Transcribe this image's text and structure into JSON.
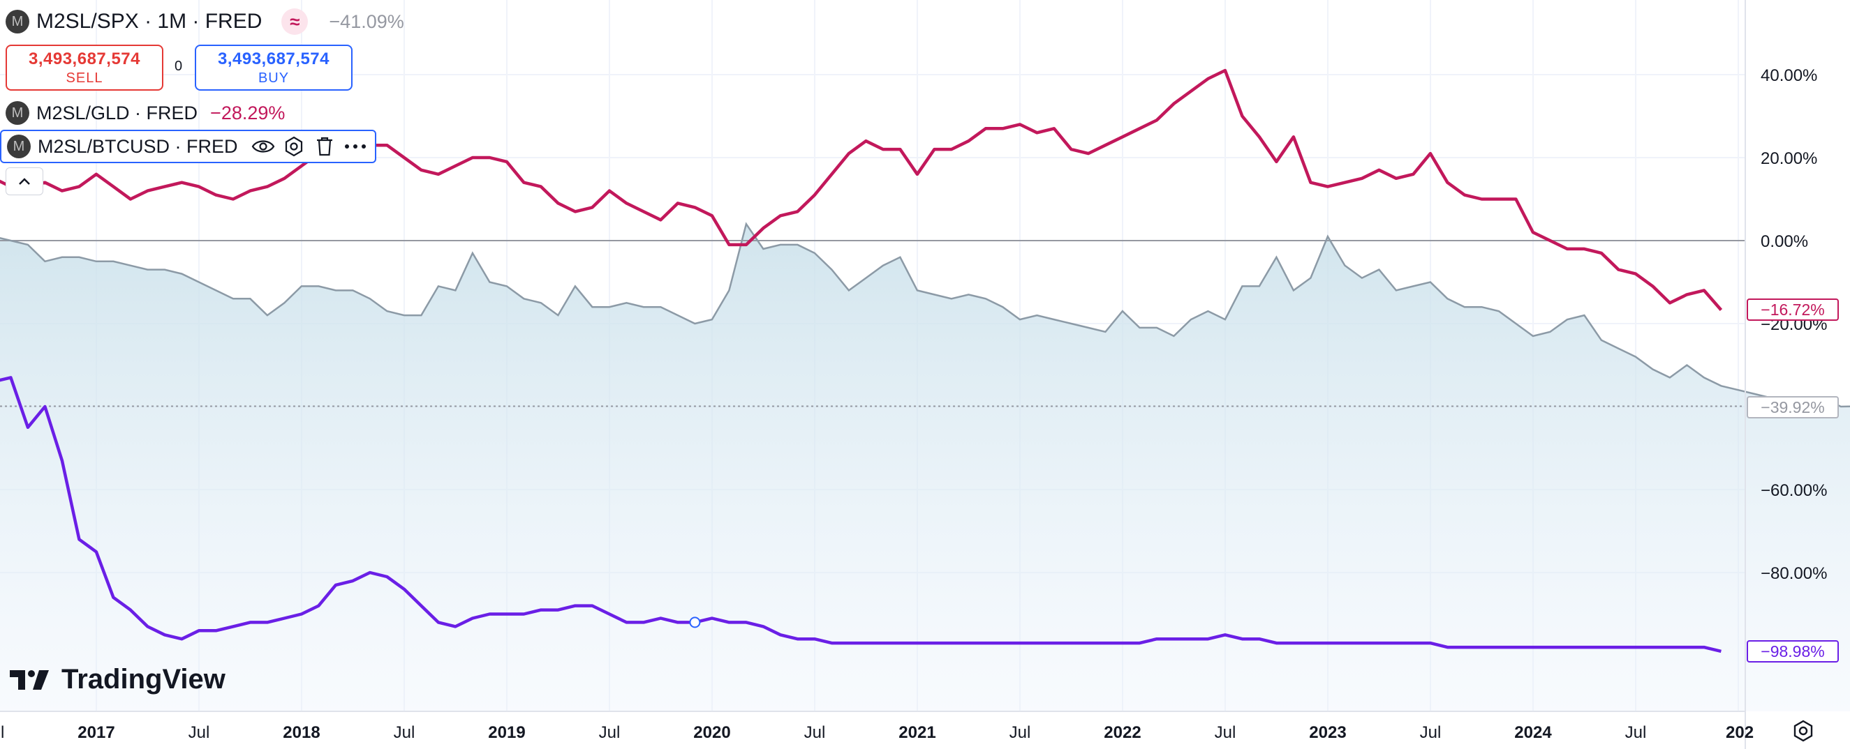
{
  "header": {
    "main_symbol": "M2SL/SPX · 1M · FRED",
    "main_change": "−41.09%",
    "compare_icon": "≈",
    "symbol_icon_letter": "M"
  },
  "trade": {
    "sell_price": "3,493,687,574",
    "sell_label": "SELL",
    "spread": "0",
    "buy_price": "3,493,687,574",
    "buy_label": "BUY"
  },
  "studies": [
    {
      "name": "M2SL/GLD · FRED",
      "change": "−28.29%"
    },
    {
      "name": "M2SL/BTCUSD · FRED",
      "change": ""
    }
  ],
  "price_labels": {
    "gld": "−16.72%",
    "spx": "−39.92%",
    "btc": "−98.98%"
  },
  "brand": "TradingView",
  "colors": {
    "spx": "#8c9aa6",
    "gld": "#c2185b",
    "btc": "#6a1fe6",
    "sell": "#e53935",
    "buy": "#2962ff"
  },
  "icons": [
    "eye-icon",
    "settings-icon",
    "trash-icon",
    "more-icon",
    "chevron-up-icon",
    "gear-icon"
  ],
  "chart_data": {
    "type": "line",
    "y_unit": "%",
    "y_ticks": [
      "40.00%",
      "20.00%",
      "0.00%",
      "−20.00%",
      "−60.00%",
      "−80.00%"
    ],
    "x_ticks": [
      "Jul",
      "2017",
      "Jul",
      "2018",
      "Jul",
      "2019",
      "Jul",
      "2020",
      "Jul",
      "2021",
      "Jul",
      "2022",
      "Jul",
      "2023",
      "Jul",
      "2024",
      "Jul",
      "202"
    ],
    "x_tick_positions": [
      0.5,
      1,
      1.5,
      2,
      2.5,
      3,
      3.5,
      4,
      4.5,
      5,
      5.5,
      6,
      6.5,
      7,
      7.5,
      8,
      8.5,
      9
    ],
    "x_start": 0.083,
    "x_step": 0.0833333,
    "grid": true,
    "series": [
      {
        "name": "M2SL/SPX",
        "style": "area",
        "values": [
          0,
          1,
          2,
          4,
          2,
          1,
          0,
          -1,
          -5,
          -4,
          -4,
          -5,
          -5,
          -6,
          -7,
          -7,
          -8,
          -10,
          -12,
          -14,
          -14,
          -18,
          -15,
          -11,
          -11,
          -12,
          -12,
          -14,
          -17,
          -18,
          -18,
          -11,
          -12,
          -3,
          -10,
          -11,
          -14,
          -15,
          -18,
          -11,
          -16,
          -16,
          -15,
          -16,
          -16,
          -18,
          -20,
          -19,
          -12,
          4,
          -2,
          -1,
          -1,
          -3,
          -7,
          -12,
          -9,
          -6,
          -4,
          -12,
          -13,
          -14,
          -13,
          -14,
          -16,
          -19,
          -18,
          -19,
          -20,
          -21,
          -22,
          -17,
          -21,
          -21,
          -23,
          -19,
          -17,
          -19,
          -11,
          -11,
          -4,
          -12,
          -9,
          1,
          -6,
          -9,
          -7,
          -12,
          -11,
          -10,
          -14,
          -16,
          -16,
          -17,
          -20,
          -23,
          -22,
          -19,
          -18,
          -24,
          -26,
          -28,
          -31,
          -33,
          -30,
          -33,
          -35,
          -36,
          -37,
          -38,
          -38,
          -40,
          -38,
          -40,
          -39.92
        ]
      },
      {
        "name": "M2SL/GLD",
        "style": "line",
        "values": [
          3,
          4,
          6,
          21,
          17,
          15,
          13,
          13,
          14,
          12,
          13,
          16,
          13,
          10,
          12,
          13,
          14,
          13,
          11,
          10,
          12,
          13,
          15,
          18,
          21,
          24,
          25,
          23,
          23,
          20,
          17,
          16,
          18,
          20,
          20,
          19,
          14,
          13,
          9,
          7,
          8,
          12,
          9,
          7,
          5,
          9,
          8,
          6,
          -1,
          -1,
          3,
          6,
          7,
          11,
          16,
          21,
          24,
          22,
          22,
          16,
          22,
          22,
          24,
          27,
          27,
          28,
          26,
          27,
          22,
          21,
          23,
          25,
          27,
          29,
          33,
          36,
          39,
          41,
          30,
          25,
          19,
          25,
          14,
          13,
          14,
          15,
          17,
          15,
          16,
          21,
          14,
          11,
          10,
          10,
          10,
          2,
          0,
          -2,
          -2,
          -3,
          -7,
          -8,
          -11,
          -15,
          -13,
          -12,
          -16.72
        ]
      },
      {
        "name": "M2SL/BTCUSD",
        "style": "line",
        "values": [
          6,
          9,
          5,
          -7,
          -14,
          -34,
          -33,
          -45,
          -40,
          -53,
          -72,
          -75,
          -86,
          -89,
          -93,
          -95,
          -96,
          -94,
          -94,
          -93,
          -92,
          -92,
          -91,
          -90,
          -88,
          -83,
          -82,
          -80,
          -81,
          -84,
          -88,
          -92,
          -93,
          -91,
          -90,
          -90,
          -90,
          -89,
          -89,
          -88,
          -88,
          -90,
          -92,
          -92,
          -91,
          -92,
          -92,
          -91,
          -92,
          -92,
          -93,
          -95,
          -96,
          -96,
          -97,
          -97,
          -97,
          -97,
          -97,
          -97,
          -97,
          -97,
          -97,
          -97,
          -97,
          -97,
          -97,
          -97,
          -97,
          -97,
          -97,
          -97,
          -97,
          -96,
          -96,
          -96,
          -96,
          -95,
          -96,
          -96,
          -97,
          -97,
          -97,
          -97,
          -97,
          -97,
          -97,
          -97,
          -97,
          -97,
          -98,
          -98,
          -98,
          -98,
          -98,
          -98,
          -98,
          -98,
          -98,
          -98,
          -98,
          -98,
          -98,
          -98,
          -98,
          -98,
          -98.98
        ]
      }
    ]
  }
}
